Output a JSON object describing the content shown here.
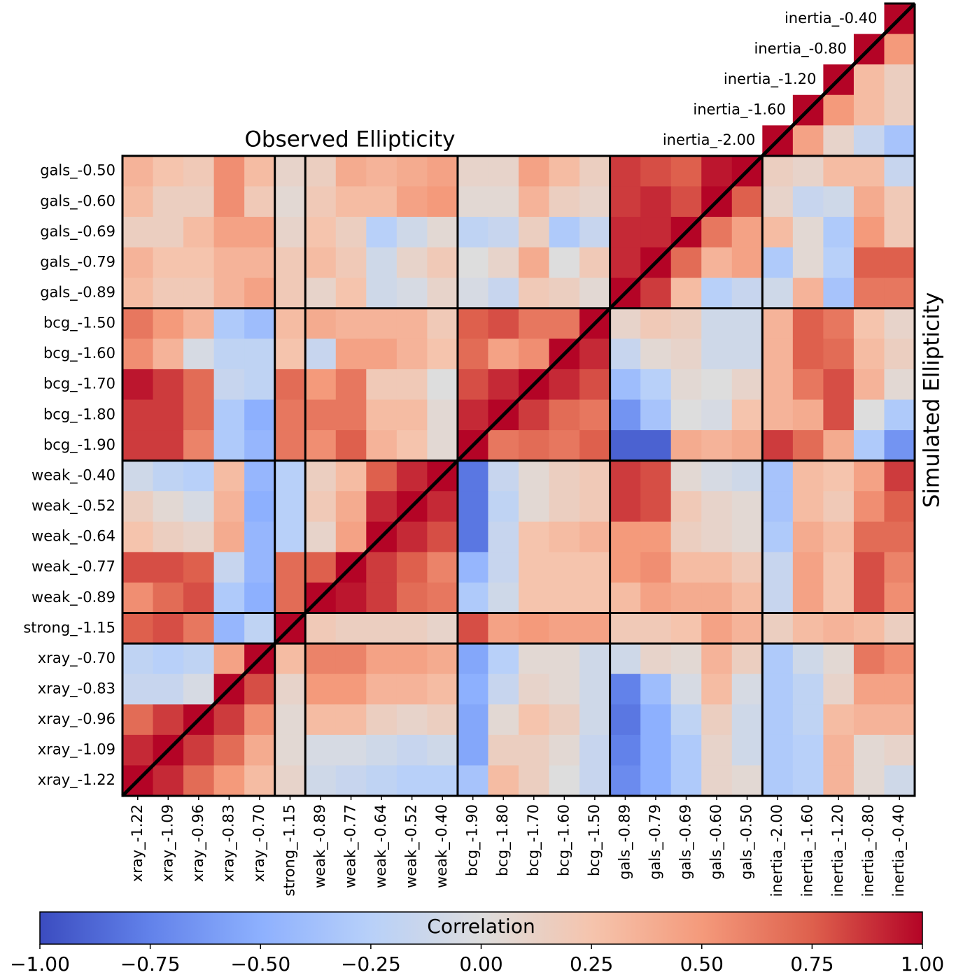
{
  "chart_data": {
    "type": "heatmap",
    "cmap": "coolwarm",
    "title": "Observed Ellipticity",
    "y_label": "Simulated Ellipticity",
    "columns": [
      "xray_-1.22",
      "xray_-1.09",
      "xray_-0.96",
      "xray_-0.83",
      "xray_-0.70",
      "strong_-1.15",
      "weak_-0.89",
      "weak_-0.77",
      "weak_-0.64",
      "weak_-0.52",
      "weak_-0.40",
      "bcg_-1.90",
      "bcg_-1.80",
      "bcg_-1.70",
      "bcg_-1.60",
      "bcg_-1.50",
      "gals_-0.89",
      "gals_-0.79",
      "gals_-0.69",
      "gals_-0.60",
      "gals_-0.50",
      "inertia_-2.00",
      "inertia_-1.60",
      "inertia_-1.20",
      "inertia_-0.80",
      "inertia_-0.40"
    ],
    "rows": [
      "inertia_-0.40",
      "inertia_-0.80",
      "inertia_-1.20",
      "inertia_-1.60",
      "inertia_-2.00",
      "gals_-0.50",
      "gals_-0.60",
      "gals_-0.69",
      "gals_-0.79",
      "gals_-0.89",
      "bcg_-1.50",
      "bcg_-1.60",
      "bcg_-1.70",
      "bcg_-1.80",
      "bcg_-1.90",
      "weak_-0.40",
      "weak_-0.52",
      "weak_-0.64",
      "weak_-0.77",
      "weak_-0.89",
      "strong_-1.15",
      "xray_-0.70",
      "xray_-0.83",
      "xray_-0.96",
      "xray_-1.09",
      "xray_-1.22"
    ],
    "values": [
      [
        null,
        null,
        null,
        null,
        null,
        null,
        null,
        null,
        null,
        null,
        null,
        null,
        null,
        null,
        null,
        null,
        null,
        null,
        null,
        null,
        null,
        null,
        null,
        null,
        null,
        1.0
      ],
      [
        null,
        null,
        null,
        null,
        null,
        null,
        null,
        null,
        null,
        null,
        null,
        null,
        null,
        null,
        null,
        null,
        null,
        null,
        null,
        null,
        null,
        null,
        null,
        null,
        1.0,
        0.5
      ],
      [
        null,
        null,
        null,
        null,
        null,
        null,
        null,
        null,
        null,
        null,
        null,
        null,
        null,
        null,
        null,
        null,
        null,
        null,
        null,
        null,
        null,
        null,
        null,
        1.0,
        0.3,
        0.15
      ],
      [
        null,
        null,
        null,
        null,
        null,
        null,
        null,
        null,
        null,
        null,
        null,
        null,
        null,
        null,
        null,
        null,
        null,
        null,
        null,
        null,
        null,
        null,
        1.0,
        0.5,
        0.3,
        0.15
      ],
      [
        null,
        null,
        null,
        null,
        null,
        null,
        null,
        null,
        null,
        null,
        null,
        null,
        null,
        null,
        null,
        null,
        null,
        null,
        null,
        null,
        null,
        1.0,
        0.45,
        0.1,
        -0.15,
        -0.35
      ],
      [
        0.35,
        0.25,
        0.2,
        0.55,
        0.3,
        0.1,
        0.15,
        0.4,
        0.35,
        0.4,
        0.45,
        0.1,
        0.1,
        0.45,
        0.3,
        0.15,
        0.85,
        0.8,
        0.75,
        0.95,
        1.0,
        0.15,
        0.1,
        0.3,
        0.3,
        -0.15
      ],
      [
        0.3,
        0.15,
        0.15,
        0.55,
        0.2,
        0.05,
        0.2,
        0.3,
        0.3,
        0.45,
        0.5,
        0.05,
        0.05,
        0.35,
        0.15,
        0.1,
        0.85,
        0.9,
        0.8,
        1.0,
        0.75,
        0.1,
        -0.15,
        -0.1,
        0.4,
        0.2
      ],
      [
        0.15,
        0.15,
        0.3,
        0.45,
        0.45,
        0.1,
        0.25,
        0.15,
        -0.25,
        -0.1,
        0.05,
        -0.2,
        -0.15,
        0.15,
        -0.3,
        -0.15,
        0.9,
        0.9,
        1.0,
        0.65,
        0.45,
        0.3,
        0.05,
        -0.3,
        0.5,
        0.2
      ],
      [
        0.35,
        0.25,
        0.25,
        0.35,
        0.35,
        0.2,
        0.3,
        0.2,
        -0.1,
        0.1,
        0.2,
        0.0,
        0.1,
        0.4,
        0.0,
        0.2,
        0.9,
        1.0,
        0.7,
        0.35,
        0.45,
        -0.3,
        0.05,
        -0.25,
        0.75,
        0.75
      ],
      [
        0.3,
        0.2,
        0.2,
        0.35,
        0.45,
        0.2,
        0.1,
        0.25,
        -0.1,
        -0.05,
        0.1,
        -0.05,
        -0.15,
        0.2,
        0.15,
        0.05,
        1.0,
        0.85,
        0.3,
        -0.25,
        -0.15,
        -0.1,
        0.35,
        -0.35,
        0.65,
        0.65
      ],
      [
        0.65,
        0.5,
        0.35,
        -0.3,
        -0.4,
        0.3,
        0.4,
        0.35,
        0.35,
        0.35,
        0.2,
        0.75,
        0.8,
        0.65,
        0.65,
        1.0,
        0.1,
        0.2,
        0.15,
        -0.1,
        -0.1,
        0.35,
        0.75,
        0.65,
        0.25,
        0.1
      ],
      [
        0.55,
        0.35,
        -0.05,
        -0.2,
        -0.2,
        0.25,
        -0.15,
        0.45,
        0.45,
        0.35,
        0.25,
        0.7,
        0.45,
        0.55,
        1.0,
        0.9,
        -0.15,
        0.05,
        0.1,
        -0.1,
        -0.1,
        0.35,
        0.75,
        0.7,
        0.3,
        0.15
      ],
      [
        0.95,
        0.85,
        0.7,
        -0.15,
        -0.2,
        0.7,
        0.5,
        0.65,
        0.2,
        0.2,
        0.0,
        0.8,
        0.9,
        1.0,
        0.9,
        0.8,
        -0.4,
        -0.25,
        0.05,
        0.0,
        0.1,
        0.35,
        0.65,
        0.8,
        0.35,
        0.05
      ],
      [
        0.85,
        0.85,
        0.7,
        -0.3,
        -0.5,
        0.65,
        0.65,
        0.65,
        0.3,
        0.3,
        0.05,
        0.9,
        1.0,
        0.85,
        0.7,
        0.65,
        -0.65,
        -0.35,
        0.0,
        -0.05,
        0.25,
        0.35,
        0.4,
        0.8,
        0.0,
        -0.3
      ],
      [
        0.85,
        0.85,
        0.6,
        -0.3,
        -0.45,
        0.65,
        0.55,
        0.75,
        0.35,
        0.25,
        0.05,
        1.0,
        0.65,
        0.7,
        0.65,
        0.75,
        -0.9,
        -0.9,
        0.4,
        0.35,
        0.4,
        0.85,
        0.7,
        0.4,
        -0.3,
        -0.65
      ],
      [
        -0.1,
        -0.2,
        -0.25,
        0.3,
        -0.45,
        -0.25,
        0.15,
        0.3,
        0.75,
        0.9,
        1.0,
        -0.8,
        -0.15,
        0.05,
        0.15,
        0.2,
        0.85,
        0.8,
        0.05,
        -0.05,
        -0.1,
        -0.35,
        0.3,
        0.25,
        0.45,
        0.85
      ],
      [
        0.15,
        0.05,
        -0.05,
        0.35,
        -0.5,
        -0.25,
        0.2,
        0.4,
        0.9,
        1.0,
        0.9,
        -0.8,
        -0.2,
        0.05,
        0.15,
        0.2,
        0.85,
        0.8,
        0.2,
        0.1,
        0.05,
        -0.35,
        0.3,
        0.2,
        0.55,
        0.75
      ],
      [
        0.25,
        0.15,
        0.1,
        0.4,
        -0.45,
        -0.25,
        0.1,
        0.45,
        1.0,
        0.9,
        0.8,
        -0.8,
        -0.15,
        0.25,
        0.3,
        0.35,
        0.5,
        0.5,
        0.15,
        0.1,
        0.05,
        -0.3,
        0.4,
        0.3,
        0.7,
        0.7
      ],
      [
        0.8,
        0.8,
        0.75,
        -0.15,
        -0.45,
        0.7,
        0.75,
        1.0,
        0.85,
        0.75,
        0.6,
        -0.45,
        -0.15,
        0.25,
        0.25,
        0.25,
        0.5,
        0.55,
        0.3,
        0.3,
        0.2,
        -0.15,
        0.45,
        0.25,
        0.8,
        0.6
      ],
      [
        0.55,
        0.7,
        0.8,
        -0.3,
        -0.5,
        0.7,
        1.0,
        0.95,
        0.85,
        0.7,
        0.65,
        -0.3,
        -0.1,
        0.25,
        0.25,
        0.25,
        0.3,
        0.45,
        0.4,
        0.4,
        0.3,
        -0.15,
        0.45,
        0.25,
        0.8,
        0.55
      ],
      [
        0.75,
        0.8,
        0.65,
        -0.45,
        -0.2,
        1.0,
        0.2,
        0.15,
        0.15,
        0.15,
        0.1,
        0.8,
        0.45,
        0.5,
        0.45,
        0.45,
        0.2,
        0.2,
        0.25,
        0.45,
        0.35,
        0.15,
        0.3,
        0.35,
        0.3,
        0.15
      ],
      [
        -0.2,
        -0.25,
        -0.2,
        0.45,
        1.0,
        0.3,
        0.6,
        0.6,
        0.45,
        0.45,
        0.4,
        -0.55,
        -0.25,
        0.05,
        0.05,
        -0.1,
        -0.1,
        0.1,
        0.05,
        0.35,
        0.15,
        -0.3,
        -0.1,
        0.05,
        0.65,
        0.55
      ],
      [
        -0.15,
        -0.15,
        -0.05,
        1.0,
        0.8,
        0.1,
        0.5,
        0.5,
        0.35,
        0.35,
        0.3,
        -0.5,
        -0.15,
        0.1,
        0.05,
        -0.1,
        -0.75,
        -0.4,
        -0.05,
        0.3,
        -0.05,
        -0.3,
        -0.2,
        0.1,
        0.45,
        0.45
      ],
      [
        0.7,
        0.85,
        1.0,
        0.85,
        0.55,
        0.05,
        0.3,
        0.3,
        0.15,
        0.1,
        0.15,
        -0.55,
        0.05,
        0.25,
        0.15,
        -0.1,
        -0.8,
        -0.5,
        -0.2,
        0.15,
        -0.1,
        -0.3,
        -0.2,
        0.3,
        0.35,
        0.35
      ],
      [
        0.9,
        1.0,
        0.85,
        0.7,
        0.4,
        0.05,
        -0.05,
        -0.05,
        -0.1,
        -0.15,
        -0.1,
        -0.55,
        0.15,
        0.15,
        0.05,
        -0.15,
        -0.75,
        -0.5,
        -0.3,
        0.1,
        -0.1,
        -0.3,
        -0.25,
        0.35,
        0.05,
        0.1
      ],
      [
        1.0,
        0.9,
        0.7,
        0.5,
        0.3,
        0.1,
        -0.1,
        -0.15,
        -0.2,
        -0.25,
        -0.25,
        -0.35,
        0.3,
        0.15,
        0.0,
        -0.15,
        -0.7,
        -0.5,
        -0.3,
        0.1,
        0.05,
        -0.3,
        -0.25,
        0.35,
        0.05,
        -0.1
      ]
    ],
    "colorbar": {
      "label": "Correlation",
      "lim": [
        -1,
        1
      ],
      "ticks": [
        {
          "value": -1,
          "label": "−1.00"
        },
        {
          "value": -0.75,
          "label": "−0.75"
        },
        {
          "value": -0.5,
          "label": "−0.50"
        },
        {
          "value": -0.25,
          "label": "−0.25"
        },
        {
          "value": 0,
          "label": "0.00"
        },
        {
          "value": 0.25,
          "label": "0.25"
        },
        {
          "value": 0.5,
          "label": "0.50"
        },
        {
          "value": 0.75,
          "label": "0.75"
        },
        {
          "value": 1,
          "label": "1.00"
        }
      ]
    }
  }
}
